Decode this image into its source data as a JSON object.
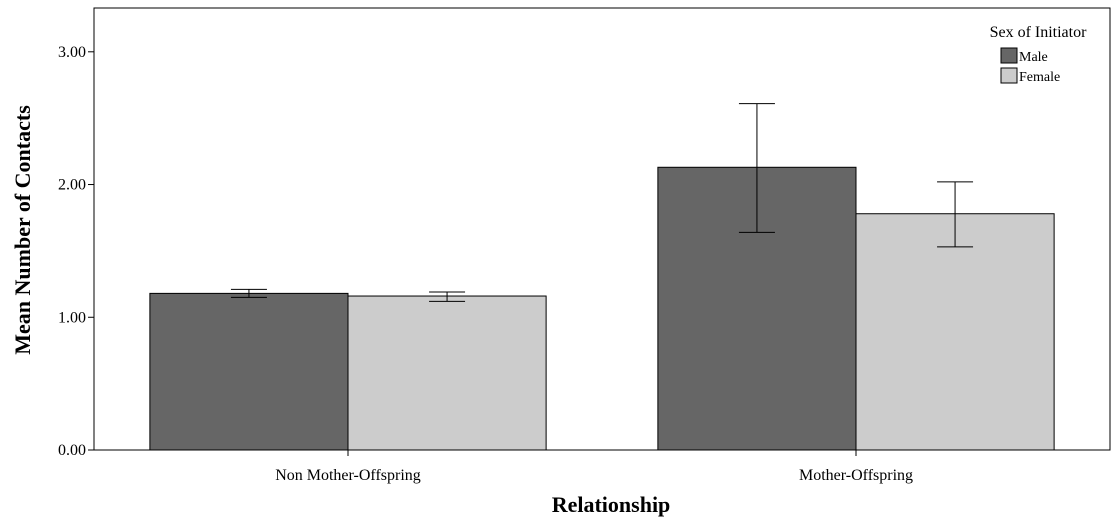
{
  "chart_data": {
    "type": "bar",
    "title": "",
    "xlabel": "Relationship",
    "ylabel": "Mean Number of Contacts",
    "categories": [
      "Non Mother-Offspring",
      "Mother-Offspring"
    ],
    "y_ticks": [
      "0.00",
      "1.00",
      "2.00",
      "3.00"
    ],
    "y_tick_values": [
      0,
      1,
      2,
      3
    ],
    "ylim": [
      0,
      3.33
    ],
    "grid": false,
    "legend": {
      "title": "Sex of Initiator",
      "position": "top-right"
    },
    "series": [
      {
        "name": "Male",
        "color": "#666666",
        "values": [
          1.18,
          2.13
        ],
        "error_low": [
          1.15,
          1.64
        ],
        "error_high": [
          1.21,
          2.61
        ]
      },
      {
        "name": "Female",
        "color": "#cccccc",
        "values": [
          1.16,
          1.78
        ],
        "error_low": [
          1.12,
          1.53
        ],
        "error_high": [
          1.19,
          2.02
        ]
      }
    ]
  }
}
